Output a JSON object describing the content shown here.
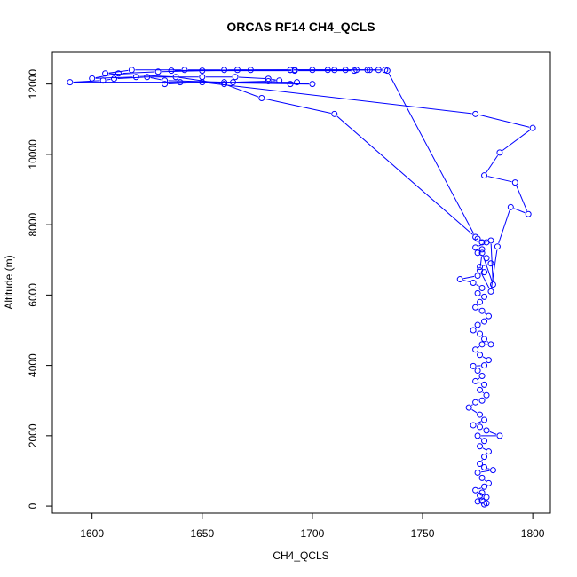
{
  "chart_data": {
    "type": "line",
    "title": "ORCAS RF14 CH4_QCLS",
    "xlabel": "CH4_QCLS",
    "ylabel": "Altitude (m)",
    "xlim": [
      1582,
      1808
    ],
    "ylim": [
      -200,
      12900
    ],
    "xticks": [
      "1600",
      "1650",
      "1700",
      "1750",
      "1800"
    ],
    "yticks": [
      "0",
      "2000",
      "4000",
      "6000",
      "8000",
      "10000",
      "12000"
    ],
    "grid": false,
    "legend": "none",
    "series": [
      {
        "color": "#0000ff",
        "marker": "open-circle",
        "points": [
          [
            1778,
            50
          ],
          [
            1779,
            80
          ],
          [
            1777,
            150
          ],
          [
            1775,
            130
          ],
          [
            1779,
            250
          ],
          [
            1777,
            380
          ],
          [
            1776,
            300
          ],
          [
            1774,
            450
          ],
          [
            1778,
            550
          ],
          [
            1780,
            650
          ],
          [
            1777,
            800
          ],
          [
            1775,
            950
          ],
          [
            1782,
            1020
          ],
          [
            1778,
            1100
          ],
          [
            1776,
            1200
          ],
          [
            1778,
            1400
          ],
          [
            1780,
            1550
          ],
          [
            1776,
            1700
          ],
          [
            1778,
            1850
          ],
          [
            1775,
            2000
          ],
          [
            1785,
            2000
          ],
          [
            1779,
            2150
          ],
          [
            1776,
            2250
          ],
          [
            1773,
            2300
          ],
          [
            1778,
            2450
          ],
          [
            1776,
            2600
          ],
          [
            1771,
            2800
          ],
          [
            1774,
            2950
          ],
          [
            1777,
            3000
          ],
          [
            1779,
            3150
          ],
          [
            1776,
            3300
          ],
          [
            1778,
            3450
          ],
          [
            1774,
            3550
          ],
          [
            1777,
            3700
          ],
          [
            1775,
            3850
          ],
          [
            1773,
            3980
          ],
          [
            1778,
            4000
          ],
          [
            1780,
            4150
          ],
          [
            1776,
            4300
          ],
          [
            1774,
            4450
          ],
          [
            1777,
            4600
          ],
          [
            1781,
            4600
          ],
          [
            1778,
            4750
          ],
          [
            1776,
            4900
          ],
          [
            1773,
            5000
          ],
          [
            1775,
            5150
          ],
          [
            1778,
            5250
          ],
          [
            1780,
            5400
          ],
          [
            1777,
            5550
          ],
          [
            1774,
            5650
          ],
          [
            1776,
            5800
          ],
          [
            1778,
            5950
          ],
          [
            1775,
            6050
          ],
          [
            1777,
            6200
          ],
          [
            1773,
            6350
          ],
          [
            1767,
            6450
          ],
          [
            1775,
            6550
          ],
          [
            1778,
            6650
          ],
          [
            1776,
            6800
          ],
          [
            1781,
            6900
          ],
          [
            1779,
            7050
          ],
          [
            1775,
            7200
          ],
          [
            1777,
            7300
          ],
          [
            1774,
            7350
          ],
          [
            1779,
            7500
          ],
          [
            1775,
            7600
          ],
          [
            1777,
            7500
          ],
          [
            1781,
            7550
          ],
          [
            1782,
            6300
          ],
          [
            1777,
            7200
          ],
          [
            1776,
            6700
          ],
          [
            1781,
            6100
          ],
          [
            1784,
            7380
          ],
          [
            1790,
            8500
          ],
          [
            1798,
            8300
          ],
          [
            1792,
            9200
          ],
          [
            1778,
            9400
          ],
          [
            1785,
            10050
          ],
          [
            1800,
            10750
          ],
          [
            1774,
            11150
          ],
          [
            1650,
            12050
          ],
          [
            1633,
            12000
          ],
          [
            1640,
            12050
          ],
          [
            1700,
            12000
          ],
          [
            1690,
            12000
          ],
          [
            1693,
            12050
          ],
          [
            1660,
            12050
          ],
          [
            1633,
            12100
          ],
          [
            1625,
            12200
          ],
          [
            1610,
            12150
          ],
          [
            1605,
            12100
          ],
          [
            1590,
            12050
          ],
          [
            1664,
            12050
          ],
          [
            1680,
            12080
          ],
          [
            1685,
            12100
          ],
          [
            1680,
            12150
          ],
          [
            1665,
            12200
          ],
          [
            1650,
            12200
          ],
          [
            1620,
            12200
          ],
          [
            1600,
            12160
          ],
          [
            1612,
            12300
          ],
          [
            1630,
            12350
          ],
          [
            1650,
            12380
          ],
          [
            1690,
            12400
          ],
          [
            1700,
            12400
          ],
          [
            1725,
            12400
          ],
          [
            1733,
            12400
          ],
          [
            1734,
            12380
          ],
          [
            1774,
            7650
          ],
          [
            1710,
            11150
          ],
          [
            1677,
            11600
          ],
          [
            1660,
            12000
          ],
          [
            1638,
            12200
          ],
          [
            1606,
            12300
          ],
          [
            1618,
            12400
          ],
          [
            1642,
            12400
          ],
          [
            1660,
            12400
          ],
          [
            1672,
            12400
          ],
          [
            1692,
            12400
          ],
          [
            1710,
            12400
          ],
          [
            1726,
            12400
          ],
          [
            1730,
            12400
          ],
          [
            1720,
            12400
          ],
          [
            1690,
            12400
          ],
          [
            1666,
            12400
          ],
          [
            1636,
            12380
          ],
          [
            1692,
            12380
          ],
          [
            1719,
            12380
          ],
          [
            1707,
            12400
          ],
          [
            1715,
            12400
          ]
        ]
      }
    ]
  }
}
